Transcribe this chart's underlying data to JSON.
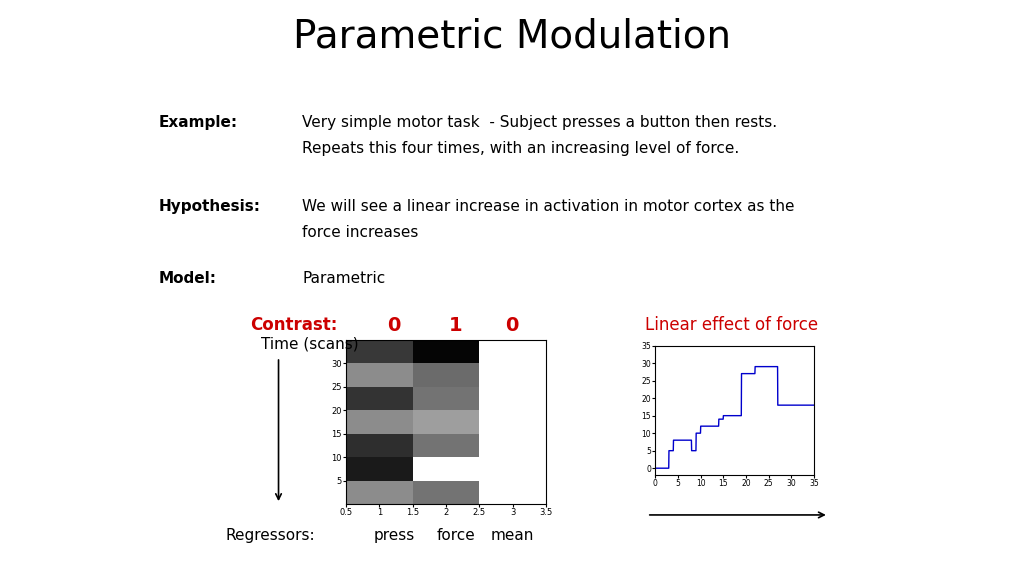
{
  "title": "Parametric Modulation",
  "title_fontsize": 28,
  "example_label": "Example",
  "example_text1": "Very simple motor task  - Subject presses a button then rests.",
  "example_text2": "Repeats this four times, with an increasing level of force.",
  "hypothesis_label": "Hypothesis",
  "hypothesis_text1": "We will see a linear increase in activation in motor cortex as the",
  "hypothesis_text2": "force increases",
  "model_label": "Model:",
  "model_text": "Parametric",
  "contrast_label": "Contrast:",
  "contrast_values": [
    "0",
    "1",
    "0"
  ],
  "contrast_color": "#cc0000",
  "regressors_label": "Regressors:",
  "regressors_values": [
    "press",
    "force",
    "mean"
  ],
  "time_label": "Time (scans)",
  "linear_label": "Linear effect of force",
  "linear_color": "#cc0000",
  "background_color": "#ffffff",
  "text_color": "#000000",
  "body_fontsize": 11,
  "label_fontsize": 11,
  "contrast_fontsize": 12,
  "contrast_val_fontsize": 14,
  "regressor_fontsize": 11,
  "line_color": "#0000cc",
  "press_colors": [
    0.22,
    0.55,
    0.2,
    0.55,
    0.18,
    0.1,
    0.55
  ],
  "force_colors": [
    0.02,
    0.42,
    0.45,
    0.62,
    0.45,
    1.0,
    0.45
  ],
  "mean_colors": [
    1.0,
    1.0,
    1.0,
    1.0,
    1.0,
    1.0,
    1.0
  ]
}
